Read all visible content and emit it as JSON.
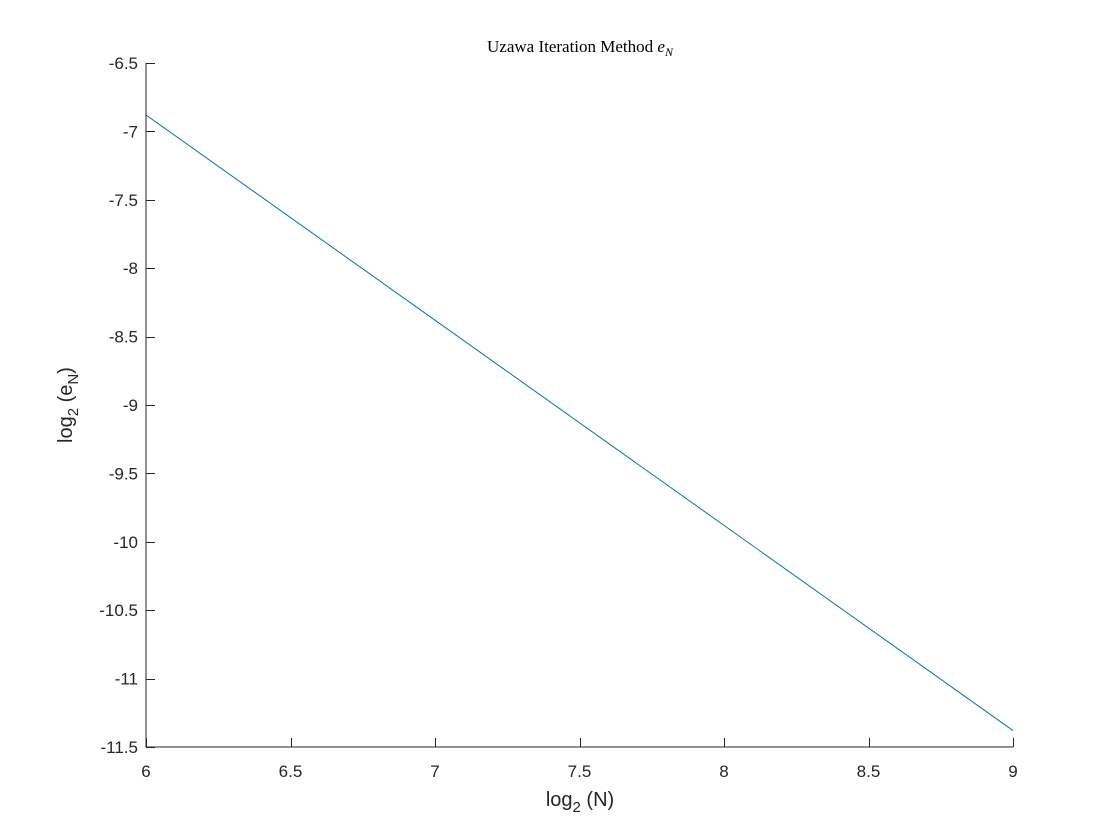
{
  "chart_data": {
    "type": "line",
    "title": {
      "main": "Uzawa Iteration Method",
      "var": "e",
      "sub": "N"
    },
    "xlabel": {
      "pre": "log",
      "sub": "2",
      "post": " (N)"
    },
    "ylabel": {
      "pre": "log",
      "sub": "2",
      "mid": " (e",
      "sub2": "N",
      "post": ")"
    },
    "xlim": [
      6,
      9
    ],
    "ylim": [
      -11.5,
      -6.5
    ],
    "xticks": [
      6,
      6.5,
      7,
      7.5,
      8,
      8.5,
      9
    ],
    "xtick_labels": [
      "6",
      "6.5",
      "7",
      "7.5",
      "8",
      "8.5",
      "9"
    ],
    "yticks": [
      -6.5,
      -7,
      -7.5,
      -8,
      -8.5,
      -9,
      -9.5,
      -10,
      -10.5,
      -11,
      -11.5
    ],
    "ytick_labels": [
      "-6.5",
      "-7",
      "-7.5",
      "-8",
      "-8.5",
      "-9",
      "-9.5",
      "-10",
      "-10.5",
      "-11",
      "-11.5"
    ],
    "grid": false,
    "series": [
      {
        "color": "#0072BD",
        "x": [
          6,
          7,
          8,
          9
        ],
        "y": [
          -6.88,
          -8.38,
          -9.88,
          -11.38
        ]
      }
    ]
  }
}
